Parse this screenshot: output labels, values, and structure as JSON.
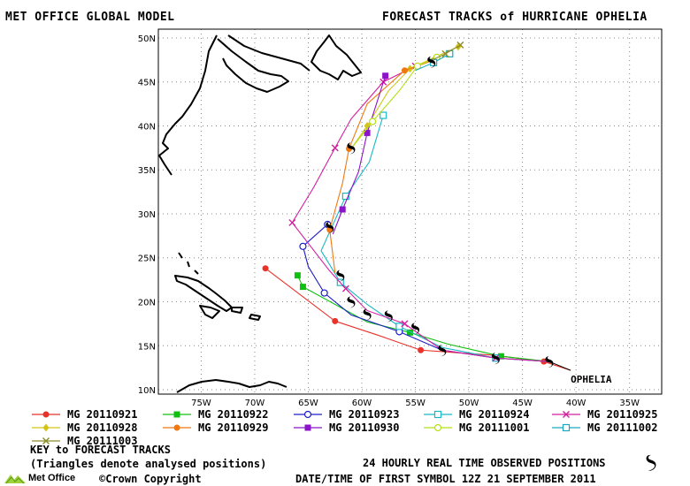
{
  "header": {
    "left_title": "MET OFFICE GLOBAL MODEL",
    "right_title": "FORECAST TRACKS of HURRICANE OPHELIA"
  },
  "map": {
    "lon_range": [
      -79,
      -32
    ],
    "lat_range": [
      9.5,
      51
    ],
    "x_ticks": [
      {
        "lon": -75,
        "label": "75W"
      },
      {
        "lon": -70,
        "label": "70W"
      },
      {
        "lon": -65,
        "label": "65W"
      },
      {
        "lon": -60,
        "label": "60W"
      },
      {
        "lon": -55,
        "label": "55W"
      },
      {
        "lon": -50,
        "label": "50W"
      },
      {
        "lon": -45,
        "label": "45W"
      },
      {
        "lon": -40,
        "label": "40W"
      },
      {
        "lon": -35,
        "label": "35W"
      }
    ],
    "y_ticks": [
      {
        "lat": 10,
        "label": "10N"
      },
      {
        "lat": 15,
        "label": "15N"
      },
      {
        "lat": 20,
        "label": "20N"
      },
      {
        "lat": 25,
        "label": "25N"
      },
      {
        "lat": 30,
        "label": "30N"
      },
      {
        "lat": 35,
        "label": "35N"
      },
      {
        "lat": 40,
        "label": "40N"
      },
      {
        "lat": 45,
        "label": "45N"
      },
      {
        "lat": 50,
        "label": "50N"
      }
    ],
    "storm_label": "OPHELIA",
    "storm_label_pos": [
      -40.5,
      10.8
    ],
    "observed_positions": [
      [
        -42.5,
        13.2
      ],
      [
        -47.5,
        13.6
      ],
      [
        -52.5,
        14.5
      ],
      [
        -55,
        17
      ],
      [
        -57.5,
        18.4
      ],
      [
        -59.5,
        18.6
      ],
      [
        -61,
        20
      ],
      [
        -62,
        23
      ],
      [
        -63,
        28.5
      ],
      [
        -61,
        37.5
      ],
      [
        -53.5,
        47.3
      ]
    ]
  },
  "chart_data": {
    "type": "line",
    "series": [
      {
        "name": "MG 20110921",
        "color": "#e8322a",
        "marker": "circle-filled",
        "points": [
          [
            -40.5,
            12.2
          ],
          [
            -43,
            13.2
          ],
          [
            -47.5,
            13.9
          ],
          [
            -54.5,
            14.5
          ],
          [
            -58.5,
            16.2
          ],
          [
            -62.5,
            17.8
          ],
          [
            -69,
            23.8
          ]
        ]
      },
      {
        "name": "MG 20110922",
        "color": "#10c010",
        "marker": "square-filled",
        "points": [
          [
            -42.5,
            13.2
          ],
          [
            -47,
            13.8
          ],
          [
            -52,
            15.2
          ],
          [
            -55.5,
            16.5
          ],
          [
            -59.5,
            17.7
          ],
          [
            -65.5,
            21.7
          ],
          [
            -66,
            23
          ]
        ]
      },
      {
        "name": "MG 20110923",
        "color": "#1d1dc8",
        "marker": "circle-open",
        "points": [
          [
            -42.5,
            13.2
          ],
          [
            -47.5,
            13.6
          ],
          [
            -52.5,
            14.5
          ],
          [
            -56.5,
            16.6
          ],
          [
            -61,
            18.5
          ],
          [
            -63.5,
            21
          ],
          [
            -65,
            24
          ],
          [
            -65.5,
            26.3
          ],
          [
            -63.2,
            28.8
          ]
        ]
      },
      {
        "name": "MG 20110924",
        "color": "#1ab8c4",
        "marker": "square-open",
        "points": [
          [
            -42.5,
            13.2
          ],
          [
            -47.5,
            13.6
          ],
          [
            -52.5,
            14.8
          ],
          [
            -56.5,
            17.2
          ],
          [
            -59.5,
            19.7
          ],
          [
            -62,
            22.2
          ],
          [
            -63.8,
            25.8
          ],
          [
            -61.5,
            32
          ],
          [
            -59.3,
            35.9
          ],
          [
            -58,
            41.2
          ]
        ]
      },
      {
        "name": "MG 20110925",
        "color": "#d21ea0",
        "marker": "x",
        "points": [
          [
            -42.5,
            13.2
          ],
          [
            -47.5,
            13.6
          ],
          [
            -52.5,
            14.5
          ],
          [
            -56,
            17.5
          ],
          [
            -59.5,
            19
          ],
          [
            -61.5,
            21.5
          ],
          [
            -63,
            23.5
          ],
          [
            -66.5,
            29
          ],
          [
            -64.5,
            33
          ],
          [
            -62.5,
            37.5
          ],
          [
            -61,
            40.8
          ],
          [
            -58,
            45
          ],
          [
            -55,
            46.8
          ]
        ]
      },
      {
        "name": "MG 20110928",
        "color": "#d4c418",
        "marker": "diamond",
        "points": [
          [
            -61,
            37.4
          ],
          [
            -59.5,
            40
          ],
          [
            -57.5,
            44
          ],
          [
            -55.5,
            46.5
          ],
          [
            -52.5,
            48.2
          ],
          [
            -51,
            49
          ]
        ]
      },
      {
        "name": "MG 20110929",
        "color": "#f07810",
        "marker": "circle-filled",
        "points": [
          [
            -62.5,
            23.3
          ],
          [
            -63,
            28.2
          ],
          [
            -61.8,
            33.5
          ],
          [
            -61.2,
            37.4
          ],
          [
            -59.5,
            42.5
          ],
          [
            -56,
            46.3
          ],
          [
            -53.2,
            47.5
          ]
        ]
      },
      {
        "name": "MG 20110930",
        "color": "#8c14c8",
        "marker": "square-filled",
        "points": [
          [
            -62.7,
            27.7
          ],
          [
            -61.8,
            30.5
          ],
          [
            -60.3,
            34.8
          ],
          [
            -59.5,
            39.2
          ],
          [
            -57.8,
            45.7
          ]
        ]
      },
      {
        "name": "MG 20111001",
        "color": "#b4e014",
        "marker": "circle-open",
        "points": [
          [
            -61,
            37.4
          ],
          [
            -59,
            40.5
          ],
          [
            -56.5,
            44
          ],
          [
            -54.8,
            46.8
          ],
          [
            -53,
            47.8
          ]
        ]
      },
      {
        "name": "MG 20111002",
        "color": "#1aa8c0",
        "marker": "square-open",
        "points": [
          [
            -55,
            46.3
          ],
          [
            -53.3,
            47.2
          ],
          [
            -51.8,
            48.2
          ]
        ]
      },
      {
        "name": "MG 20111003",
        "color": "#8c8c2a",
        "marker": "x",
        "points": [
          [
            -53.6,
            47.4
          ],
          [
            -52.2,
            48.2
          ],
          [
            -50.8,
            49.2
          ]
        ]
      }
    ]
  },
  "legend": {
    "key_title": "KEY to FORECAST TRACKS",
    "key_note": "(Triangles denote analysed positions)"
  },
  "footer": {
    "observed_note": "24 HOURLY REAL TIME OBSERVED POSITIONS",
    "datetime_note": "DATE/TIME OF FIRST SYMBOL 12Z 21 SEPTEMBER 2011",
    "logo_text": "Met Office",
    "copyright": "©Crown Copyright"
  }
}
